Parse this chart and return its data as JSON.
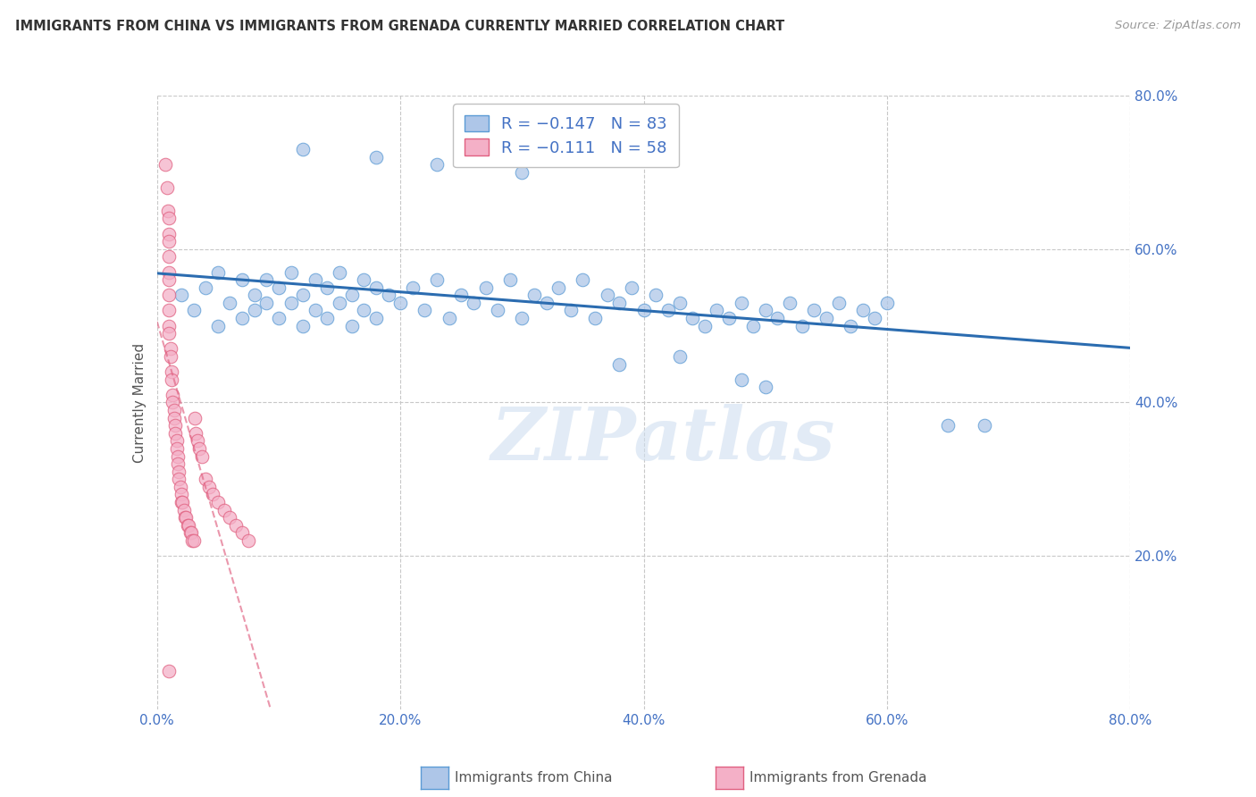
{
  "title": "IMMIGRANTS FROM CHINA VS IMMIGRANTS FROM GRENADA CURRENTLY MARRIED CORRELATION CHART",
  "source": "Source: ZipAtlas.com",
  "xlabel_bottom_china": "Immigrants from China",
  "xlabel_bottom_grenada": "Immigrants from Grenada",
  "ylabel": "Currently Married",
  "xlim": [
    0.0,
    0.8
  ],
  "ylim": [
    0.0,
    0.8
  ],
  "ytick_vals": [
    0.2,
    0.4,
    0.6,
    0.8
  ],
  "xtick_vals": [
    0.0,
    0.2,
    0.4,
    0.6,
    0.8
  ],
  "china_color": "#aec6e8",
  "china_edge": "#5b9bd5",
  "grenada_color": "#f4b0c7",
  "grenada_edge": "#e06080",
  "trend_china_color": "#2b6cb0",
  "trend_grenada_color": "#e06080",
  "watermark": "ZIPatlas",
  "bg_color": "#ffffff",
  "grid_color": "#c8c8c8",
  "legend_china": "R = −0.147   N = 83",
  "legend_grenada": "R = −0.111   N = 58"
}
